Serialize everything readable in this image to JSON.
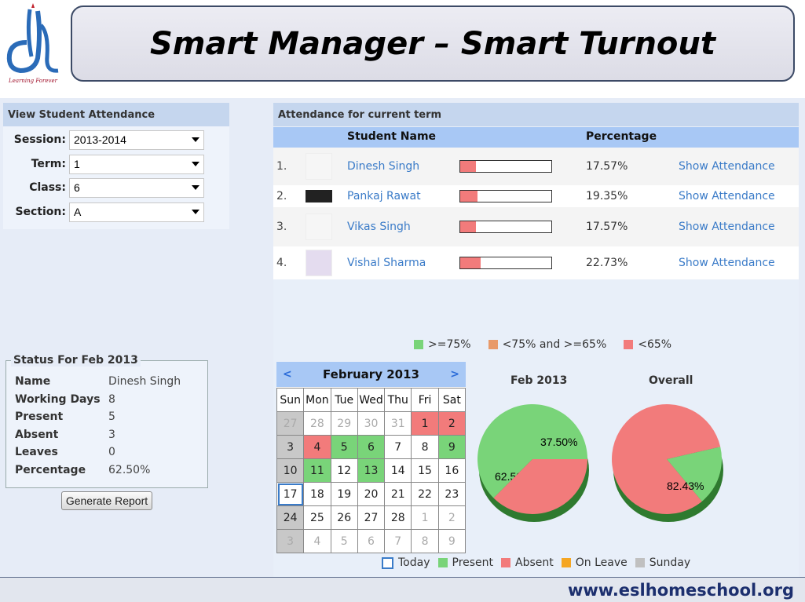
{
  "logo": {
    "tagline": "Learning Forever"
  },
  "banner": {
    "title": "Smart Manager – Smart Turnout"
  },
  "filter_panel": {
    "title": "View Student Attendance",
    "fields": [
      {
        "label": "Session:",
        "value": "2013-2014"
      },
      {
        "label": "Term:",
        "value": "1"
      },
      {
        "label": "Class:",
        "value": "6"
      },
      {
        "label": "Section:",
        "value": "A"
      }
    ]
  },
  "attendance": {
    "title": "Attendance for current term",
    "col_name": "Student Name",
    "col_pct": "Percentage",
    "rows": [
      {
        "num": "1.",
        "name": "Dinesh Singh",
        "pct": "17.57%",
        "fill": 0.1757,
        "link": "Show Attendance"
      },
      {
        "num": "2.",
        "name": "Pankaj Rawat",
        "pct": "19.35%",
        "fill": 0.1935,
        "link": "Show Attendance"
      },
      {
        "num": "3.",
        "name": "Vikas Singh",
        "pct": "17.57%",
        "fill": 0.1757,
        "link": "Show Attendance"
      },
      {
        "num": "4.",
        "name": "Vishal Sharma",
        "pct": "22.73%",
        "fill": 0.2273,
        "link": "Show Attendance"
      }
    ]
  },
  "legend_top": [
    {
      "label": ">=75%",
      "color": "#79d479"
    },
    {
      "label": "<75% and >=65%",
      "color": "#e89a6a"
    },
    {
      "label": "<65%",
      "color": "#f27b7b"
    }
  ],
  "status": {
    "title": "Status For Feb 2013",
    "rows": [
      {
        "k": "Name",
        "v": "Dinesh Singh"
      },
      {
        "k": "Working Days",
        "v": "8"
      },
      {
        "k": "Present",
        "v": "5"
      },
      {
        "k": "Absent",
        "v": "3"
      },
      {
        "k": "Leaves",
        "v": "0"
      },
      {
        "k": "Percentage",
        "v": "62.50%"
      }
    ],
    "button": "Generate Report"
  },
  "calendar": {
    "month": "February 2013",
    "prev": "<",
    "next": ">",
    "days": [
      "Sun",
      "Mon",
      "Tue",
      "Wed",
      "Thu",
      "Fri",
      "Sat"
    ],
    "weeks": [
      [
        {
          "d": "27",
          "s": "gray-muted"
        },
        {
          "d": "28",
          "s": "muted"
        },
        {
          "d": "29",
          "s": "muted"
        },
        {
          "d": "30",
          "s": "muted"
        },
        {
          "d": "31",
          "s": "muted"
        },
        {
          "d": "1",
          "s": "red"
        },
        {
          "d": "2",
          "s": "red"
        }
      ],
      [
        {
          "d": "3",
          "s": "gray"
        },
        {
          "d": "4",
          "s": "red"
        },
        {
          "d": "5",
          "s": "green"
        },
        {
          "d": "6",
          "s": "green"
        },
        {
          "d": "7",
          "s": ""
        },
        {
          "d": "8",
          "s": ""
        },
        {
          "d": "9",
          "s": "green"
        }
      ],
      [
        {
          "d": "10",
          "s": "gray"
        },
        {
          "d": "11",
          "s": "green"
        },
        {
          "d": "12",
          "s": ""
        },
        {
          "d": "13",
          "s": "green"
        },
        {
          "d": "14",
          "s": ""
        },
        {
          "d": "15",
          "s": ""
        },
        {
          "d": "16",
          "s": ""
        }
      ],
      [
        {
          "d": "17",
          "s": "today"
        },
        {
          "d": "18",
          "s": ""
        },
        {
          "d": "19",
          "s": ""
        },
        {
          "d": "20",
          "s": ""
        },
        {
          "d": "21",
          "s": ""
        },
        {
          "d": "22",
          "s": ""
        },
        {
          "d": "23",
          "s": ""
        }
      ],
      [
        {
          "d": "24",
          "s": "gray"
        },
        {
          "d": "25",
          "s": ""
        },
        {
          "d": "26",
          "s": ""
        },
        {
          "d": "27",
          "s": ""
        },
        {
          "d": "28",
          "s": ""
        },
        {
          "d": "1",
          "s": "muted"
        },
        {
          "d": "2",
          "s": "muted"
        }
      ],
      [
        {
          "d": "3",
          "s": "gray-muted"
        },
        {
          "d": "4",
          "s": "muted"
        },
        {
          "d": "5",
          "s": "muted"
        },
        {
          "d": "6",
          "s": "muted"
        },
        {
          "d": "7",
          "s": "muted"
        },
        {
          "d": "8",
          "s": "muted"
        },
        {
          "d": "9",
          "s": "muted"
        }
      ]
    ],
    "legend": [
      {
        "label": "Today",
        "color": "#3a7bc8",
        "outline": true
      },
      {
        "label": "Present",
        "color": "#79d479"
      },
      {
        "label": "Absent",
        "color": "#f27b7b"
      },
      {
        "label": "On Leave",
        "color": "#f5a623"
      },
      {
        "label": "Sunday",
        "color": "#c0c0c0"
      }
    ]
  },
  "chart_data": [
    {
      "type": "pie",
      "title": "Feb 2013",
      "slices": [
        {
          "name": "Present",
          "value": 62.5,
          "label": "62.50%",
          "color": "#79d479"
        },
        {
          "name": "Absent",
          "value": 37.5,
          "label": "37.50%",
          "color": "#f27b7b"
        }
      ]
    },
    {
      "type": "pie",
      "title": "Overall",
      "slices": [
        {
          "name": "Present",
          "value": 17.57,
          "label": "17.57%",
          "color": "#79d479"
        },
        {
          "name": "Absent",
          "value": 82.43,
          "label": "82.43%",
          "color": "#f27b7b"
        }
      ]
    }
  ],
  "footer": {
    "url": "www.eslhomeschool.org"
  }
}
